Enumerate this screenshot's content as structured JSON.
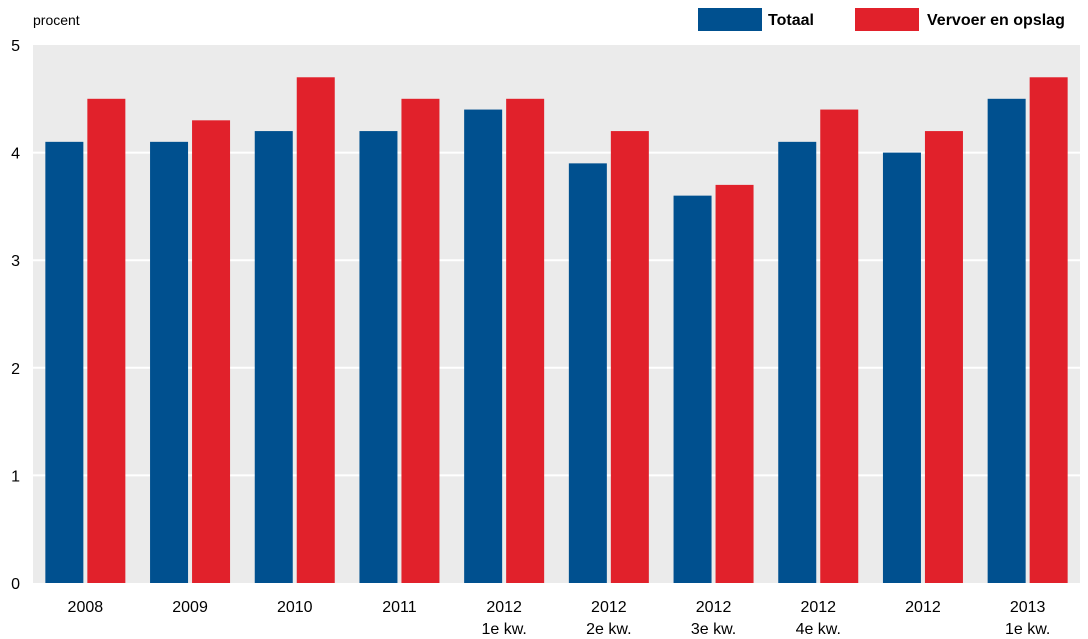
{
  "chart_data": {
    "type": "bar",
    "unit_label": "procent",
    "categories": [
      [
        "2008"
      ],
      [
        "2009"
      ],
      [
        "2010"
      ],
      [
        "2011"
      ],
      [
        "2012",
        "1e kw."
      ],
      [
        "2012",
        "2e kw."
      ],
      [
        "2012",
        "3e kw."
      ],
      [
        "2012",
        "4e kw."
      ],
      [
        "2012"
      ],
      [
        "2013",
        "1e kw."
      ]
    ],
    "series": [
      {
        "name": "Totaal",
        "color": "#00508f",
        "values": [
          4.1,
          4.1,
          4.2,
          4.2,
          4.4,
          3.9,
          3.6,
          4.1,
          4.0,
          4.5
        ]
      },
      {
        "name": "Vervoer en opslag",
        "color": "#e1212b",
        "values": [
          4.5,
          4.3,
          4.7,
          4.5,
          4.5,
          4.2,
          3.7,
          4.4,
          4.2,
          4.7
        ]
      }
    ],
    "ylim": [
      0,
      5
    ],
    "yticks": [
      0,
      1,
      2,
      3,
      4,
      5
    ],
    "grid": true,
    "legend_position": "top-right",
    "plot_background": "#ebebeb",
    "grid_color": "#ffffff"
  }
}
